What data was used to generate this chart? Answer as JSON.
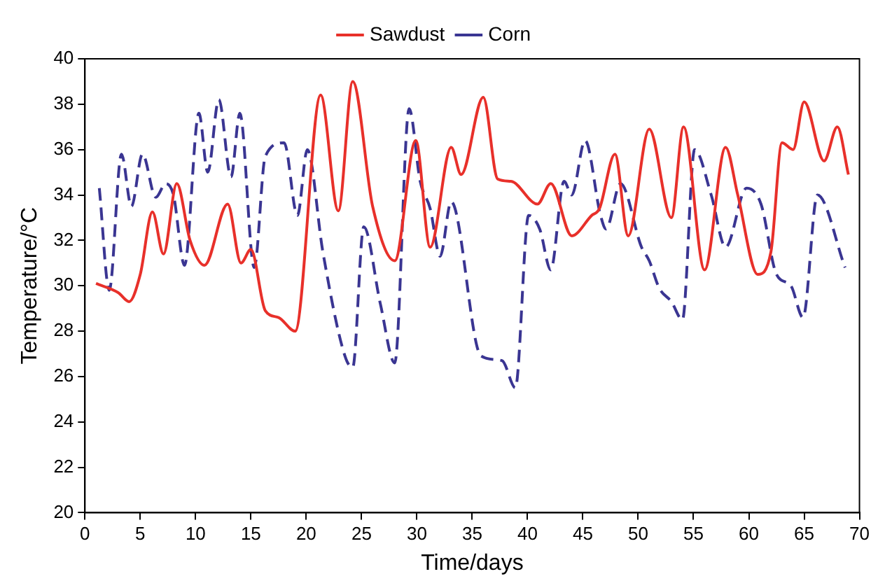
{
  "chart_data": {
    "type": "line",
    "xlabel": "Time/days",
    "ylabel": "Temperature/°C",
    "xlim": [
      0,
      70
    ],
    "xticks": [
      0,
      5,
      10,
      15,
      20,
      25,
      30,
      35,
      40,
      45,
      50,
      55,
      60,
      65,
      70
    ],
    "ylim": [
      20,
      40
    ],
    "yticks": [
      20,
      22,
      24,
      26,
      28,
      30,
      32,
      34,
      36,
      38,
      40
    ],
    "grid": false,
    "legend": "top",
    "marker": "none",
    "series": [
      {
        "name": "Sawdust",
        "color": "#e8302a",
        "line_style": "solid",
        "x": [
          1,
          3,
          4,
          5,
          6.1,
          7.1,
          8.3,
          9.5,
          10.8,
          12.9,
          14.1,
          15,
          16.3,
          17.5,
          19,
          21.3,
          22.9,
          24.2,
          26,
          28,
          29.9,
          31.2,
          33.1,
          34,
          36,
          37.3,
          38.5,
          40.9,
          42.1,
          44,
          45.8,
          46.5,
          47.9,
          49.1,
          51,
          53,
          54.1,
          56,
          57.9,
          59,
          60.8,
          62,
          63,
          64,
          65,
          66.8,
          68,
          69
        ],
        "values": [
          30.1,
          29.7,
          29.3,
          30.5,
          33.25,
          31.4,
          34.5,
          32,
          30.9,
          33.6,
          31,
          31.6,
          28.9,
          28.6,
          28,
          38.4,
          33.3,
          39,
          33.5,
          31.1,
          36.4,
          31.7,
          36.1,
          34.9,
          38.3,
          34.7,
          34.6,
          33.6,
          34.5,
          32.2,
          33.1,
          33.4,
          35.8,
          32.2,
          36.9,
          33,
          37,
          30.7,
          36.1,
          34,
          30.5,
          31.5,
          36.3,
          36,
          38.1,
          35.5,
          37,
          34.9
        ]
      },
      {
        "name": "Corn",
        "color": "#3a3592",
        "line_style": "dashed",
        "x": [
          1.3,
          2.2,
          3.3,
          4.2,
          5.2,
          6.4,
          7.3,
          8,
          9,
          10.3,
          11.1,
          12.1,
          13.2,
          14,
          15.3,
          16.3,
          18,
          19.2,
          20.1,
          21.5,
          23.5,
          24.2,
          25.2,
          26.7,
          28,
          29.3,
          30.3,
          31.2,
          32.1,
          33.1,
          35.8,
          37.7,
          38.9,
          40.1,
          41.1,
          42.1,
          43.3,
          44,
          45.2,
          46.6,
          47.1,
          48.4,
          50.3,
          51,
          51.9,
          53,
          54,
          55.1,
          56.6,
          57.9,
          59.8,
          61.1,
          62.5,
          63.8,
          64.9,
          66.2,
          68.7
        ],
        "values": [
          34.3,
          29.8,
          35.8,
          33.5,
          35.8,
          33.9,
          34.5,
          34,
          30.9,
          37.6,
          35,
          38.2,
          34.8,
          37.6,
          30.8,
          35.7,
          36.3,
          33.1,
          36,
          31.5,
          26.9,
          26.4,
          32.6,
          29.2,
          26.6,
          37.8,
          34.6,
          33.4,
          31.3,
          33.7,
          26.9,
          26.7,
          25.5,
          33.1,
          32.5,
          30.7,
          34.6,
          34,
          36.4,
          33.1,
          32.5,
          34.5,
          31.7,
          31.1,
          29.9,
          29.3,
          28.5,
          36,
          34,
          31.7,
          34.3,
          33.6,
          30.5,
          30,
          28.6,
          34,
          30.8
        ]
      }
    ]
  }
}
